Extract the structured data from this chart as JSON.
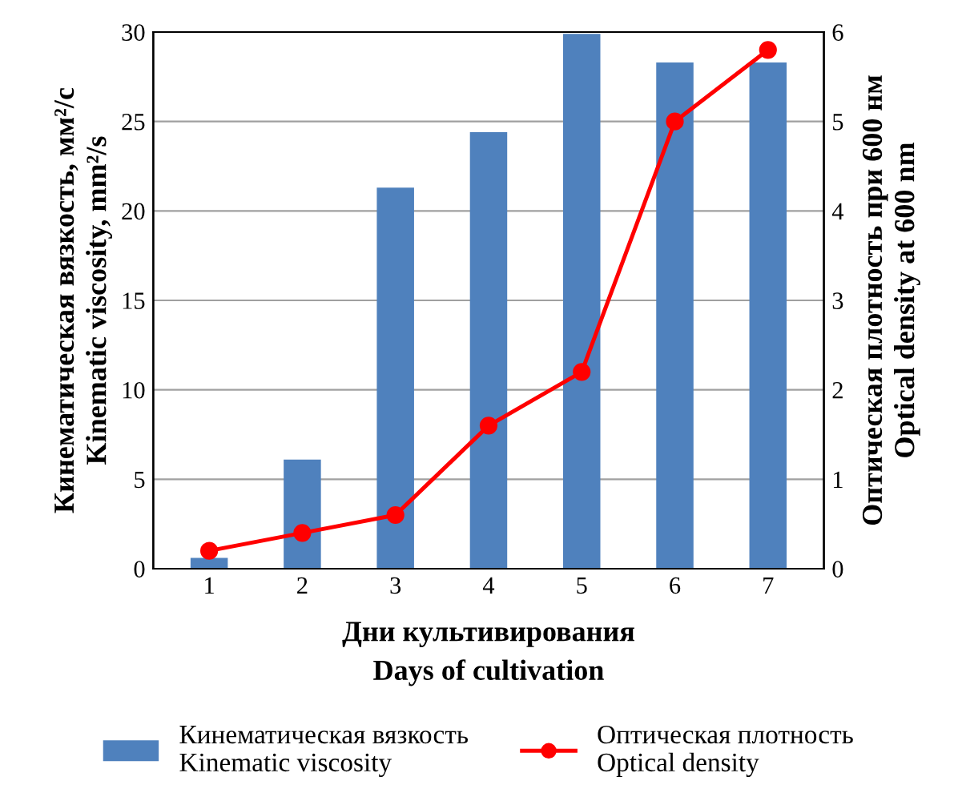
{
  "chart_data": {
    "type": "bar",
    "categories": [
      "1",
      "2",
      "3",
      "4",
      "5",
      "6",
      "7"
    ],
    "xlabel": "Дни культивирования\nDays of cultivation",
    "ylabel": "Кинематическая вязкость, мм²/с\nKinematic viscosity, mm²/s",
    "y2label": "Оптическая плотность при 600 нм\nOptical density at 600 nm",
    "series": [
      {
        "name": "Кинематическая вязкость\nKinematic viscosity",
        "color": "#4f81bd",
        "values": [
          0.6,
          6.1,
          21.3,
          24.4,
          29.9,
          28.3,
          28.3
        ]
      },
      {
        "name": "Оптическая плотность\nOptical density",
        "type": "line",
        "axis": "y2",
        "color": "#ff0000",
        "marker": "circle",
        "values": [
          0.2,
          0.4,
          0.6,
          1.6,
          2.2,
          5.0,
          5.8
        ]
      }
    ],
    "ylim": [
      0,
      30
    ],
    "yticks": [
      0,
      5,
      10,
      15,
      20,
      25,
      30
    ],
    "y2lim": [
      0,
      6
    ],
    "y2ticks": [
      0,
      1,
      2,
      3,
      4,
      5,
      6
    ],
    "grid": "y",
    "legend": "bottom"
  }
}
